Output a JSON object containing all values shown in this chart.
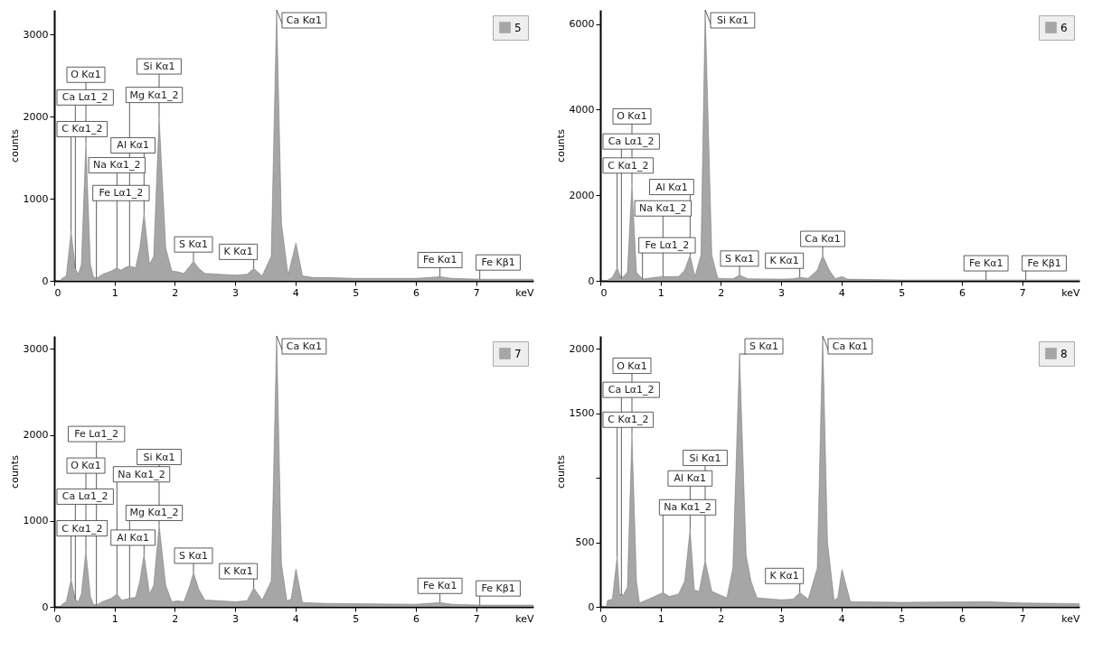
{
  "chart_data": [
    {
      "type": "area",
      "xlabel": "keV",
      "ylabel": "counts",
      "legend": "top right",
      "grid": false,
      "x": [
        0.1,
        0.13,
        0.2,
        0.28,
        0.35,
        0.4,
        0.45,
        0.525,
        0.6,
        0.65,
        0.7,
        0.8,
        0.95,
        1.04,
        1.1,
        1.2,
        1.25,
        1.35,
        1.42,
        1.49,
        1.58,
        1.65,
        1.74,
        1.85,
        1.95,
        2.05,
        2.15,
        2.25,
        2.31,
        2.4,
        2.5,
        3.0,
        3.2,
        3.31,
        3.45,
        3.6,
        3.69,
        3.77,
        3.88,
        4.01,
        4.12,
        4.3,
        4.5,
        5.0,
        6.0,
        6.4,
        6.6,
        7.06,
        7.95
      ],
      "series": [
        {
          "name": "5",
          "color": "#a6a6a6",
          "values": [
            0,
            30,
            60,
            600,
            150,
            80,
            200,
            1680,
            200,
            50,
            30,
            80,
            120,
            160,
            130,
            170,
            180,
            160,
            400,
            820,
            200,
            300,
            1990,
            400,
            120,
            110,
            90,
            180,
            240,
            150,
            90,
            70,
            80,
            150,
            60,
            300,
            3300,
            700,
            70,
            460,
            60,
            40,
            40,
            30,
            30,
            50,
            30,
            20,
            20
          ]
        }
      ],
      "xlim": [
        0,
        7.95
      ],
      "xticks": [
        0,
        1,
        2,
        3,
        4,
        5,
        6,
        7
      ],
      "ylim": [
        0,
        3300
      ],
      "yticks": [
        0,
        1000,
        2000,
        3000
      ],
      "annotations": [
        {
          "text": "C Kα1_2",
          "x": 0.28,
          "y": 600
        },
        {
          "text": "Ca Lα1_2",
          "x": 0.35,
          "y": 150
        },
        {
          "text": "O Kα1",
          "x": 0.525,
          "y": 1680
        },
        {
          "text": "Fe Lα1_2",
          "x": 0.7,
          "y": 30
        },
        {
          "text": "Na Kα1_2",
          "x": 1.04,
          "y": 160
        },
        {
          "text": "Mg Kα1_2",
          "x": 1.25,
          "y": 180
        },
        {
          "text": "Al Kα1",
          "x": 1.49,
          "y": 820
        },
        {
          "text": "Si Kα1",
          "x": 1.74,
          "y": 1990
        },
        {
          "text": "S Kα1",
          "x": 2.31,
          "y": 240
        },
        {
          "text": "K Kα1",
          "x": 3.31,
          "y": 150
        },
        {
          "text": "Ca Kα1",
          "x": 3.69,
          "y": 3300
        },
        {
          "text": "Fe Kα1",
          "x": 6.4,
          "y": 50
        },
        {
          "text": "Fe Kβ1",
          "x": 7.06,
          "y": 20
        }
      ]
    },
    {
      "type": "area",
      "xlabel": "keV",
      "ylabel": "counts",
      "legend": "top right",
      "grid": false,
      "x": [
        0.1,
        0.2,
        0.28,
        0.35,
        0.45,
        0.525,
        0.6,
        0.7,
        0.9,
        1.04,
        1.2,
        1.3,
        1.4,
        1.49,
        1.57,
        1.67,
        1.74,
        1.85,
        1.95,
        2.2,
        2.31,
        2.45,
        3.0,
        3.2,
        3.31,
        3.45,
        3.6,
        3.69,
        3.8,
        3.9,
        4.01,
        4.1,
        5.0,
        6.4,
        7.06,
        7.95
      ],
      "series": [
        {
          "name": "6",
          "color": "#a6a6a6",
          "values": [
            0,
            80,
            300,
            60,
            200,
            2250,
            200,
            40,
            80,
            100,
            100,
            100,
            250,
            600,
            100,
            600,
            6330,
            600,
            60,
            50,
            130,
            50,
            40,
            50,
            80,
            60,
            250,
            590,
            250,
            50,
            100,
            40,
            20,
            20,
            20,
            20
          ]
        }
      ],
      "xlim": [
        0,
        7.95
      ],
      "xticks": [
        0,
        1,
        2,
        3,
        4,
        5,
        6,
        7
      ],
      "ylim": [
        0,
        6330
      ],
      "yticks": [
        0,
        2000,
        4000,
        6000
      ],
      "annotations": [
        {
          "text": "C Kα1_2",
          "x": 0.28,
          "y": 300
        },
        {
          "text": "Ca Lα1_2",
          "x": 0.35,
          "y": 60
        },
        {
          "text": "O Kα1",
          "x": 0.525,
          "y": 2250
        },
        {
          "text": "Fe Lα1_2",
          "x": 0.7,
          "y": 40
        },
        {
          "text": "Na Kα1_2",
          "x": 1.04,
          "y": 100
        },
        {
          "text": "Al Kα1",
          "x": 1.49,
          "y": 600
        },
        {
          "text": "Si Kα1",
          "x": 1.74,
          "y": 6330
        },
        {
          "text": "S Kα1",
          "x": 2.31,
          "y": 130
        },
        {
          "text": "K Kα1",
          "x": 3.31,
          "y": 80
        },
        {
          "text": "Ca Kα1",
          "x": 3.69,
          "y": 590
        },
        {
          "text": "Fe Kα1",
          "x": 6.4,
          "y": 20
        },
        {
          "text": "Fe Kβ1",
          "x": 7.06,
          "y": 20
        }
      ]
    },
    {
      "type": "area",
      "xlabel": "keV",
      "ylabel": "counts",
      "legend": "top right",
      "grid": false,
      "x": [
        0.1,
        0.13,
        0.2,
        0.28,
        0.35,
        0.4,
        0.45,
        0.525,
        0.6,
        0.65,
        0.7,
        0.8,
        0.95,
        1.04,
        1.12,
        1.2,
        1.25,
        1.35,
        1.42,
        1.49,
        1.58,
        1.65,
        1.74,
        1.85,
        1.95,
        2.05,
        2.15,
        2.25,
        2.31,
        2.4,
        2.5,
        3.0,
        3.2,
        3.31,
        3.45,
        3.6,
        3.69,
        3.77,
        3.86,
        3.93,
        4.01,
        4.12,
        4.5,
        6.0,
        6.4,
        6.6,
        7.06,
        7.95
      ],
      "series": [
        {
          "name": "7",
          "color": "#a6a6a6",
          "values": [
            0,
            30,
            60,
            320,
            90,
            60,
            150,
            650,
            120,
            30,
            20,
            60,
            100,
            150,
            80,
            90,
            100,
            110,
            300,
            610,
            150,
            250,
            950,
            250,
            60,
            70,
            60,
            250,
            400,
            200,
            80,
            60,
            70,
            220,
            80,
            300,
            3150,
            500,
            70,
            90,
            440,
            50,
            40,
            30,
            50,
            30,
            20,
            20
          ]
        }
      ],
      "xlim": [
        0,
        7.95
      ],
      "xticks": [
        0,
        1,
        2,
        3,
        4,
        5,
        6,
        7
      ],
      "ylim": [
        0,
        3150
      ],
      "yticks": [
        0,
        1000,
        2000,
        3000
      ],
      "annotations": [
        {
          "text": "C Kα1_2",
          "x": 0.28,
          "y": 320
        },
        {
          "text": "Ca Lα1_2",
          "x": 0.35,
          "y": 90
        },
        {
          "text": "O Kα1",
          "x": 0.525,
          "y": 650
        },
        {
          "text": "Fe Lα1_2",
          "x": 0.7,
          "y": 20
        },
        {
          "text": "Na Kα1_2",
          "x": 1.04,
          "y": 150
        },
        {
          "text": "Mg Kα1_2",
          "x": 1.25,
          "y": 100
        },
        {
          "text": "Al Kα1",
          "x": 1.49,
          "y": 610
        },
        {
          "text": "Si Kα1",
          "x": 1.74,
          "y": 950
        },
        {
          "text": "S Kα1",
          "x": 2.31,
          "y": 400
        },
        {
          "text": "K Kα1",
          "x": 3.31,
          "y": 220
        },
        {
          "text": "Ca Kα1",
          "x": 3.69,
          "y": 3150
        },
        {
          "text": "Fe Kα1",
          "x": 6.4,
          "y": 50
        },
        {
          "text": "Fe Kβ1",
          "x": 7.06,
          "y": 20
        }
      ]
    },
    {
      "type": "area",
      "xlabel": "keV",
      "ylabel": "counts",
      "legend": "top right",
      "grid": false,
      "x": [
        0.1,
        0.12,
        0.2,
        0.28,
        0.32,
        0.38,
        0.45,
        0.525,
        0.6,
        0.65,
        0.8,
        1.04,
        1.15,
        1.3,
        1.4,
        1.49,
        1.56,
        1.64,
        1.74,
        1.85,
        2.0,
        2.1,
        2.2,
        2.31,
        2.42,
        2.5,
        2.6,
        3.0,
        3.2,
        3.31,
        3.45,
        3.6,
        3.69,
        3.77,
        3.88,
        3.94,
        4.01,
        4.15,
        5.0,
        6.4,
        7.0,
        7.95
      ],
      "series": [
        {
          "name": "8",
          "color": "#a6a6a6",
          "values": [
            0,
            50,
            60,
            390,
            100,
            90,
            150,
            1340,
            200,
            30,
            60,
            110,
            80,
            100,
            200,
            600,
            130,
            120,
            360,
            120,
            90,
            70,
            300,
            1960,
            400,
            200,
            70,
            55,
            60,
            110,
            60,
            300,
            2100,
            500,
            50,
            70,
            290,
            40,
            35,
            40,
            30,
            25
          ]
        }
      ],
      "xlim": [
        0,
        7.95
      ],
      "xticks": [
        0,
        1,
        2,
        3,
        4,
        5,
        6,
        7
      ],
      "ylim": [
        0,
        2100
      ],
      "yticks": [
        0,
        500,
        {
          "value": 1000,
          "label": null
        },
        1500,
        2000
      ],
      "annotations": [
        {
          "text": "C Kα1_2",
          "x": 0.28,
          "y": 390
        },
        {
          "text": "Ca Lα1_2",
          "x": 0.35,
          "y": 90
        },
        {
          "text": "O Kα1",
          "x": 0.525,
          "y": 1340
        },
        {
          "text": "Na Kα1_2",
          "x": 1.04,
          "y": 110
        },
        {
          "text": "Al Kα1",
          "x": 1.49,
          "y": 600
        },
        {
          "text": "Si Kα1",
          "x": 1.74,
          "y": 360
        },
        {
          "text": "S Kα1",
          "x": 2.31,
          "y": 1960
        },
        {
          "text": "K Kα1",
          "x": 3.31,
          "y": 110
        },
        {
          "text": "Ca Kα1",
          "x": 3.69,
          "y": 2100
        }
      ]
    }
  ]
}
